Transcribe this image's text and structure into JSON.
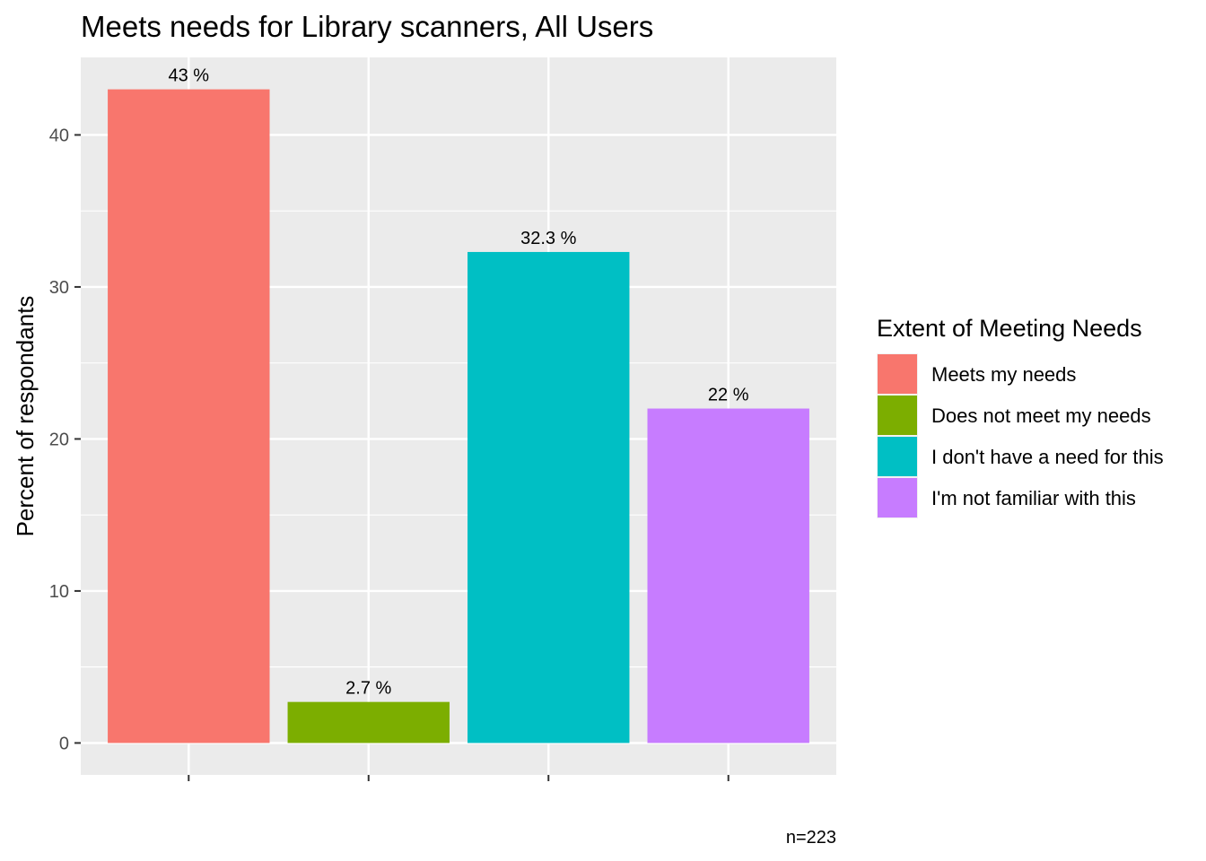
{
  "chart_data": {
    "type": "bar",
    "title": "Meets needs for Library scanners, All Users",
    "xlabel": "",
    "ylabel": "Percent of respondants",
    "categories": [
      "Meets my needs",
      "Does not meet my needs",
      "I don't have a need for this",
      "I'm not familiar with this"
    ],
    "values": [
      43,
      2.7,
      32.3,
      22
    ],
    "data_labels": [
      "43 %",
      "2.7 %",
      "32.3 %",
      "22 %"
    ],
    "colors": [
      "#F8766D",
      "#7CAE00",
      "#00BFC4",
      "#C77CFF"
    ],
    "ylim": [
      -2.1,
      45.1
    ],
    "yticks": [
      0,
      10,
      20,
      30,
      40
    ],
    "ytick_labels": [
      "0",
      "10",
      "20",
      "30",
      "40"
    ],
    "grid": true,
    "panel_background": "#EBEBEB",
    "legend": {
      "title": "Extent of Meeting Needs",
      "position": "right",
      "entries": [
        "Meets my needs",
        "Does not meet my needs",
        "I don't have a need for this",
        "I'm not familiar with this"
      ]
    },
    "caption": "n=223"
  }
}
